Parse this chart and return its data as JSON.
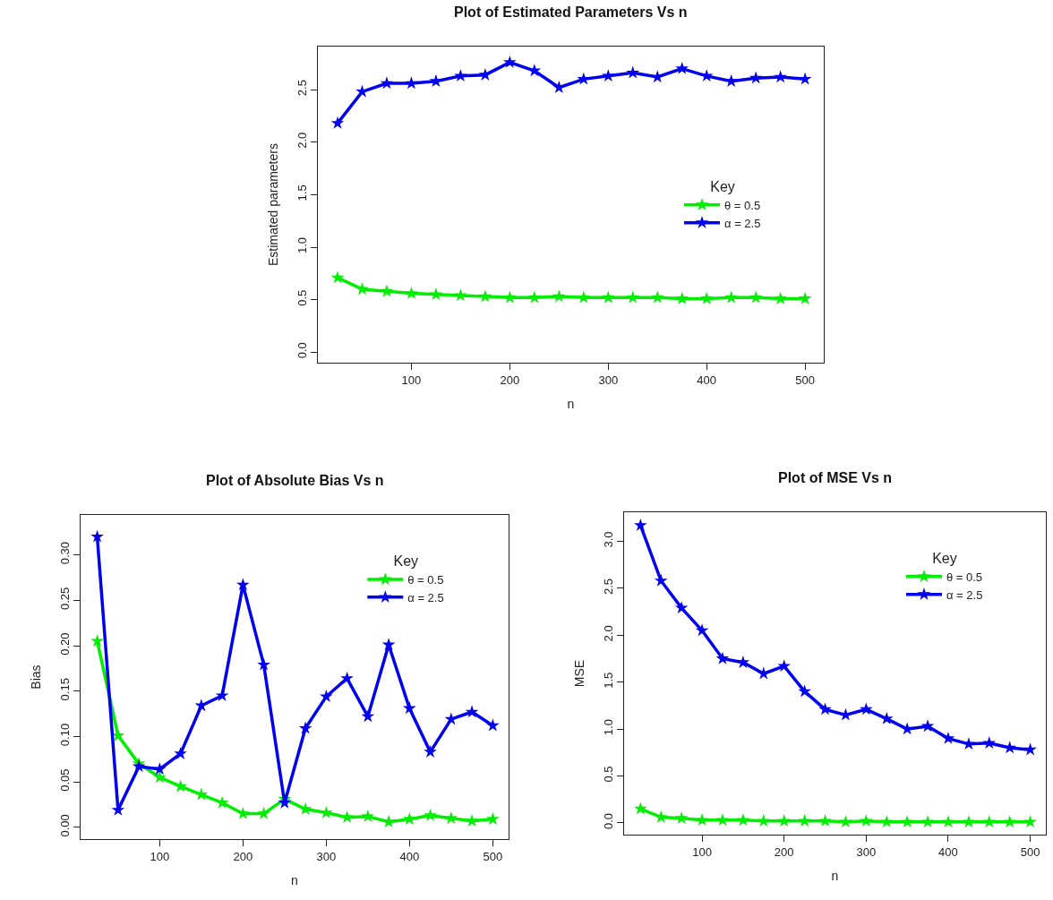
{
  "chart_data": [
    {
      "type": "line",
      "title": "Plot of Estimated Parameters Vs n",
      "xlabel": "n",
      "ylabel": "Estimated parameters",
      "legend_title": "Key",
      "legend": "right",
      "marker": "star",
      "x": [
        25,
        50,
        75,
        100,
        125,
        150,
        175,
        200,
        225,
        250,
        275,
        300,
        325,
        350,
        375,
        400,
        425,
        450,
        475,
        500
      ],
      "xlim": [
        5,
        519
      ],
      "xticks": [
        100,
        200,
        300,
        400,
        500
      ],
      "ylim": [
        -0.1,
        2.91
      ],
      "yticks": [
        {
          "value": 0,
          "label": "0.0"
        },
        {
          "value": 0.5,
          "label": "0.5"
        },
        {
          "value": 1,
          "label": "1.0"
        },
        {
          "value": 1.5,
          "label": "1.5"
        },
        {
          "value": 2,
          "label": "2.0"
        },
        {
          "value": 2.5,
          "label": "2.5"
        }
      ],
      "series": [
        {
          "name": "θ = 0.5",
          "color": "#00ee00",
          "values": [
            0.71,
            0.6,
            0.58,
            0.56,
            0.55,
            0.54,
            0.53,
            0.52,
            0.52,
            0.53,
            0.52,
            0.52,
            0.52,
            0.52,
            0.51,
            0.51,
            0.52,
            0.52,
            0.51,
            0.51
          ]
        },
        {
          "name": "α = 2.5",
          "color": "#0000ee",
          "values": [
            2.18,
            2.48,
            2.56,
            2.56,
            2.58,
            2.63,
            2.64,
            2.76,
            2.68,
            2.52,
            2.6,
            2.63,
            2.66,
            2.62,
            2.7,
            2.63,
            2.58,
            2.61,
            2.62,
            2.6
          ]
        }
      ]
    },
    {
      "type": "line",
      "title": "Plot of Absolute Bias Vs n",
      "xlabel": "n",
      "ylabel": "Bias",
      "legend_title": "Key",
      "legend": "top right",
      "marker": "star",
      "x": [
        25,
        50,
        75,
        100,
        125,
        150,
        175,
        200,
        225,
        250,
        275,
        300,
        325,
        350,
        375,
        400,
        425,
        450,
        475,
        500
      ],
      "xlim": [
        5,
        519
      ],
      "xticks": [
        100,
        200,
        300,
        400,
        500
      ],
      "ylim": [
        -0.013,
        0.344
      ],
      "yticks": [
        {
          "value": 0,
          "label": "0.00"
        },
        {
          "value": 0.05,
          "label": "0.05"
        },
        {
          "value": 0.1,
          "label": "0.10"
        },
        {
          "value": 0.15,
          "label": "0.15"
        },
        {
          "value": 0.2,
          "label": "0.20"
        },
        {
          "value": 0.25,
          "label": "0.25"
        },
        {
          "value": 0.3,
          "label": "0.30"
        }
      ],
      "series": [
        {
          "name": "θ = 0.5",
          "color": "#00ee00",
          "values": [
            0.205,
            0.101,
            0.07,
            0.055,
            0.045,
            0.036,
            0.027,
            0.015,
            0.015,
            0.031,
            0.02,
            0.016,
            0.011,
            0.012,
            0.006,
            0.009,
            0.013,
            0.01,
            0.007,
            0.009
          ]
        },
        {
          "name": "α = 2.5",
          "color": "#0000ee",
          "values": [
            0.32,
            0.019,
            0.067,
            0.064,
            0.081,
            0.134,
            0.145,
            0.267,
            0.179,
            0.027,
            0.109,
            0.144,
            0.164,
            0.122,
            0.201,
            0.131,
            0.083,
            0.119,
            0.127,
            0.112
          ]
        }
      ]
    },
    {
      "type": "line",
      "title": "Plot of MSE Vs n",
      "xlabel": "n",
      "ylabel": "MSE",
      "legend_title": "Key",
      "legend": "top right",
      "marker": "star",
      "x": [
        25,
        50,
        75,
        100,
        125,
        150,
        175,
        200,
        225,
        250,
        275,
        300,
        325,
        350,
        375,
        400,
        425,
        450,
        475,
        500
      ],
      "xlim": [
        5,
        519
      ],
      "xticks": [
        100,
        200,
        300,
        400,
        500
      ],
      "ylim": [
        -0.125,
        3.31
      ],
      "yticks": [
        {
          "value": 0,
          "label": "0.0"
        },
        {
          "value": 0.5,
          "label": "0.5"
        },
        {
          "value": 1,
          "label": "1.0"
        },
        {
          "value": 1.5,
          "label": "1.5"
        },
        {
          "value": 2,
          "label": "2.0"
        },
        {
          "value": 2.5,
          "label": "2.5"
        },
        {
          "value": 3,
          "label": "3.0"
        }
      ],
      "series": [
        {
          "name": "θ = 0.5",
          "color": "#00ee00",
          "values": [
            0.15,
            0.06,
            0.05,
            0.03,
            0.03,
            0.03,
            0.02,
            0.02,
            0.02,
            0.02,
            0.01,
            0.02,
            0.01,
            0.01,
            0.01,
            0.01,
            0.01,
            0.01,
            0.01,
            0.01
          ]
        },
        {
          "name": "α = 2.5",
          "color": "#0000ee",
          "values": [
            3.17,
            2.58,
            2.29,
            2.05,
            1.75,
            1.71,
            1.59,
            1.67,
            1.4,
            1.21,
            1.15,
            1.21,
            1.11,
            1.0,
            1.03,
            0.9,
            0.84,
            0.85,
            0.8,
            0.78
          ]
        }
      ]
    }
  ]
}
